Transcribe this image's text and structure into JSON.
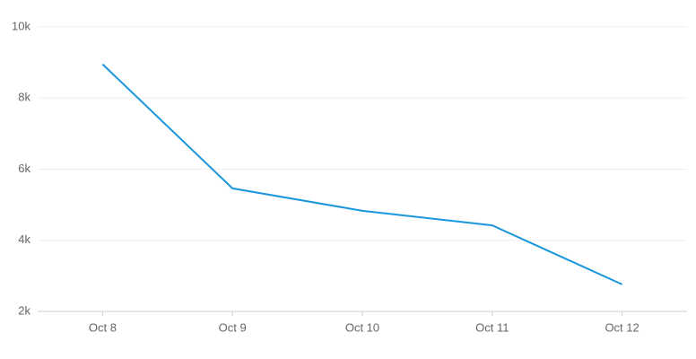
{
  "chart_data": {
    "type": "line",
    "categories": [
      "Oct 8",
      "Oct 9",
      "Oct 10",
      "Oct 11",
      "Oct 12"
    ],
    "series": [
      {
        "color": "#1a96dc",
        "values": [
          8950,
          5460,
          4830,
          4420,
          2760
        ]
      }
    ],
    "ylim": [
      2000,
      10000
    ],
    "yticks": [
      {
        "value": 2000,
        "label": "2k"
      },
      {
        "value": 4000,
        "label": "4k"
      },
      {
        "value": 6000,
        "label": "6k"
      },
      {
        "value": 8000,
        "label": "8k"
      },
      {
        "value": 10000,
        "label": "10k"
      }
    ],
    "grid": true
  }
}
